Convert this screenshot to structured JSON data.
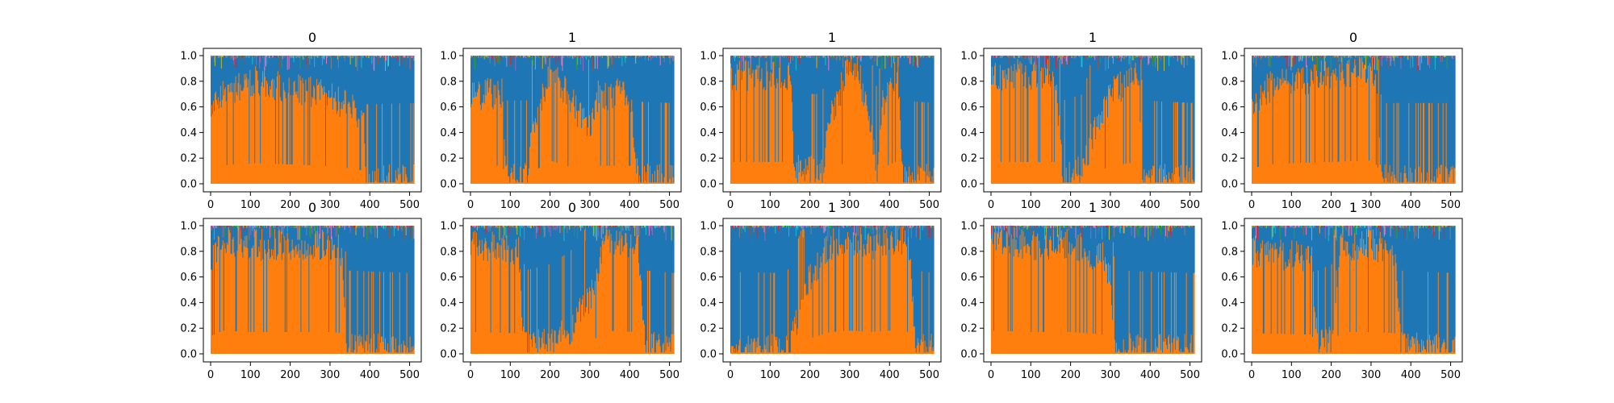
{
  "figure": {
    "colors": {
      "class0": "#1f77b4",
      "class1": "#ff7f0e",
      "minor": [
        "#17becf",
        "#bcbd22",
        "#2ca02c",
        "#9467bd",
        "#e377c2",
        "#8c564b",
        "#d62728",
        "#7f7f7f"
      ]
    }
  },
  "chart_data": [
    {
      "type": "area",
      "stacked": true,
      "title": "0",
      "xlim": [
        0,
        511
      ],
      "ylim": [
        0,
        1
      ],
      "xticks": [
        "0",
        "100",
        "200",
        "300",
        "400",
        "500"
      ],
      "yticks": [
        "0.0",
        "0.2",
        "0.4",
        "0.6",
        "0.8",
        "1.0"
      ],
      "class1_share": {
        "x": [
          0,
          20,
          60,
          120,
          200,
          280,
          350,
          385,
          390,
          511
        ],
        "y": [
          0.6,
          0.7,
          0.75,
          0.8,
          0.75,
          0.7,
          0.6,
          0.5,
          0.02,
          0.03
        ]
      }
    },
    {
      "type": "area",
      "stacked": true,
      "title": "1",
      "xlim": [
        0,
        511
      ],
      "ylim": [
        0,
        1
      ],
      "xticks": [
        "0",
        "100",
        "200",
        "300",
        "400",
        "500"
      ],
      "yticks": [
        "0.0",
        "0.2",
        "0.4",
        "0.6",
        "0.8",
        "1.0"
      ],
      "class1_share": {
        "x": [
          0,
          80,
          90,
          140,
          160,
          200,
          260,
          300,
          320,
          400,
          420,
          511
        ],
        "y": [
          0.7,
          0.7,
          0.05,
          0.05,
          0.5,
          0.9,
          0.6,
          0.4,
          0.7,
          0.7,
          0.04,
          0.03
        ]
      }
    },
    {
      "type": "area",
      "stacked": true,
      "title": "1",
      "xlim": [
        0,
        511
      ],
      "ylim": [
        0,
        1
      ],
      "xticks": [
        "0",
        "100",
        "200",
        "300",
        "400",
        "500"
      ],
      "yticks": [
        "0.0",
        "0.2",
        "0.4",
        "0.6",
        "0.8",
        "1.0"
      ],
      "class1_share": {
        "x": [
          0,
          150,
          160,
          230,
          250,
          300,
          320,
          370,
          380,
          420,
          430,
          511
        ],
        "y": [
          0.85,
          0.85,
          0.1,
          0.1,
          0.5,
          0.95,
          0.9,
          0.1,
          0.6,
          0.9,
          0.05,
          0.03
        ]
      }
    },
    {
      "type": "area",
      "stacked": true,
      "title": "1",
      "xlim": [
        0,
        511
      ],
      "ylim": [
        0,
        1
      ],
      "xticks": [
        "0",
        "100",
        "200",
        "300",
        "400",
        "500"
      ],
      "yticks": [
        "0.0",
        "0.2",
        "0.4",
        "0.6",
        "0.8",
        "1.0"
      ],
      "class1_share": {
        "x": [
          0,
          160,
          180,
          230,
          250,
          300,
          370,
          380,
          511
        ],
        "y": [
          0.85,
          0.85,
          0.05,
          0.1,
          0.35,
          0.7,
          0.85,
          0.05,
          0.03
        ]
      }
    },
    {
      "type": "area",
      "stacked": true,
      "title": "0",
      "xlim": [
        0,
        511
      ],
      "ylim": [
        0,
        1
      ],
      "xticks": [
        "0",
        "100",
        "200",
        "300",
        "400",
        "500"
      ],
      "yticks": [
        "0.0",
        "0.2",
        "0.4",
        "0.6",
        "0.8",
        "1.0"
      ],
      "class1_share": {
        "x": [
          0,
          40,
          100,
          200,
          300,
          315,
          325,
          511
        ],
        "y": [
          0.6,
          0.75,
          0.8,
          0.85,
          0.9,
          0.7,
          0.03,
          0.03
        ]
      }
    },
    {
      "type": "area",
      "stacked": true,
      "title": "0",
      "xlim": [
        0,
        511
      ],
      "ylim": [
        0,
        1
      ],
      "xticks": [
        "0",
        "100",
        "200",
        "300",
        "400",
        "500"
      ],
      "yticks": [
        "0.0",
        "0.2",
        "0.4",
        "0.6",
        "0.8",
        "1.0"
      ],
      "class1_share": {
        "x": [
          0,
          30,
          100,
          200,
          300,
          330,
          340,
          511
        ],
        "y": [
          0.7,
          0.9,
          0.85,
          0.85,
          0.85,
          0.8,
          0.05,
          0.03
        ]
      }
    },
    {
      "type": "area",
      "stacked": true,
      "title": "0",
      "xlim": [
        0,
        511
      ],
      "ylim": [
        0,
        1
      ],
      "xticks": [
        "0",
        "100",
        "200",
        "300",
        "400",
        "500"
      ],
      "yticks": [
        "0.0",
        "0.2",
        "0.4",
        "0.6",
        "0.8",
        "1.0"
      ],
      "class1_share": {
        "x": [
          0,
          120,
          135,
          200,
          250,
          300,
          340,
          420,
          440,
          511
        ],
        "y": [
          0.85,
          0.8,
          0.05,
          0.1,
          0.2,
          0.45,
          0.9,
          0.85,
          0.05,
          0.03
        ]
      }
    },
    {
      "type": "area",
      "stacked": true,
      "title": "1",
      "xlim": [
        0,
        511
      ],
      "ylim": [
        0,
        1
      ],
      "xticks": [
        "0",
        "100",
        "200",
        "300",
        "400",
        "500"
      ],
      "yticks": [
        "0.0",
        "0.2",
        "0.4",
        "0.6",
        "0.8",
        "1.0"
      ],
      "class1_share": {
        "x": [
          0,
          140,
          150,
          200,
          250,
          300,
          350,
          400,
          450,
          465,
          511
        ],
        "y": [
          0.04,
          0.03,
          0.1,
          0.6,
          0.85,
          0.9,
          0.85,
          0.9,
          0.85,
          0.05,
          0.03
        ]
      }
    },
    {
      "type": "area",
      "stacked": true,
      "title": "1",
      "xlim": [
        0,
        511
      ],
      "ylim": [
        0,
        1
      ],
      "xticks": [
        "0",
        "100",
        "200",
        "300",
        "400",
        "500"
      ],
      "yticks": [
        "0.0",
        "0.2",
        "0.4",
        "0.6",
        "0.8",
        "1.0"
      ],
      "class1_share": {
        "x": [
          0,
          100,
          200,
          280,
          300,
          310,
          511
        ],
        "y": [
          0.9,
          0.85,
          0.85,
          0.75,
          0.6,
          0.05,
          0.03
        ]
      }
    },
    {
      "type": "area",
      "stacked": true,
      "title": "1",
      "xlim": [
        0,
        511
      ],
      "ylim": [
        0,
        1
      ],
      "xticks": [
        "0",
        "100",
        "200",
        "300",
        "400",
        "500"
      ],
      "yticks": [
        "0.0",
        "0.2",
        "0.4",
        "0.6",
        "0.8",
        "1.0"
      ],
      "class1_share": {
        "x": [
          0,
          150,
          165,
          200,
          220,
          300,
          360,
          375,
          511
        ],
        "y": [
          0.8,
          0.75,
          0.05,
          0.1,
          0.85,
          0.85,
          0.8,
          0.05,
          0.03
        ]
      }
    }
  ]
}
